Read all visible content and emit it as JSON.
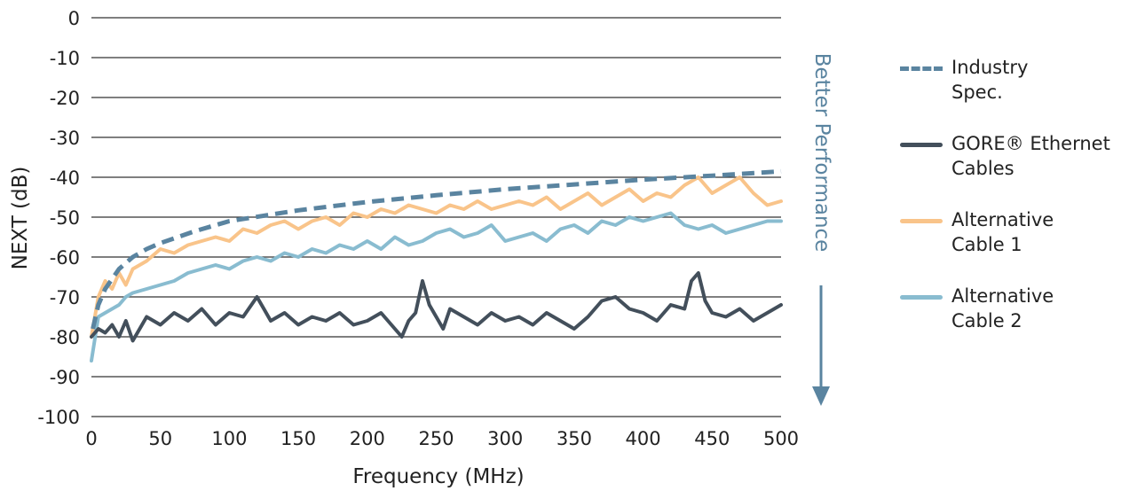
{
  "colors": {
    "industry": "#5a84a0",
    "gore": "#434f5b",
    "alt1": "#f9c48a",
    "alt2": "#89bcd0",
    "arrow": "#5a84a0"
  },
  "arrow_label": "Better Performance",
  "legend": [
    {
      "line1": "Industry",
      "line2": "Spec.",
      "series": "industry",
      "dashed": true
    },
    {
      "line1": "GORE® Ethernet",
      "line2": "Cables",
      "series": "gore",
      "dashed": false
    },
    {
      "line1": "Alternative",
      "line2": "Cable 1",
      "series": "alt1",
      "dashed": false
    },
    {
      "line1": "Alternative",
      "line2": "Cable 2",
      "series": "alt2",
      "dashed": false
    }
  ],
  "chart_data": {
    "type": "line",
    "xlabel": "Frequency (MHz)",
    "ylabel": "NEXT (dB)",
    "xlim": [
      0,
      500
    ],
    "ylim": [
      -100,
      0
    ],
    "x_ticks": [
      0,
      50,
      100,
      150,
      200,
      250,
      300,
      350,
      400,
      450,
      500
    ],
    "y_ticks": [
      0,
      -10,
      -20,
      -30,
      -40,
      -50,
      -60,
      -70,
      -80,
      -90,
      -100
    ],
    "grid": "horizontal",
    "legend_position": "right",
    "series": [
      {
        "key": "industry",
        "name": "Industry Spec.",
        "style": "dashed",
        "x": [
          1,
          5,
          10,
          15,
          20,
          30,
          40,
          50,
          75,
          100,
          150,
          200,
          250,
          300,
          350,
          400,
          450,
          500
        ],
        "y": [
          -78,
          -72,
          -68,
          -65.5,
          -63,
          -60,
          -58,
          -56.5,
          -53.5,
          -51,
          -48.3,
          -46.2,
          -44.5,
          -43,
          -41.8,
          -40.6,
          -39.6,
          -38.5
        ]
      },
      {
        "key": "gore",
        "name": "GORE® Ethernet Cables",
        "style": "solid",
        "x": [
          0,
          5,
          10,
          15,
          20,
          25,
          30,
          40,
          50,
          60,
          70,
          80,
          90,
          100,
          110,
          120,
          125,
          130,
          140,
          150,
          160,
          170,
          180,
          190,
          200,
          210,
          220,
          225,
          230,
          235,
          240,
          245,
          250,
          255,
          260,
          270,
          280,
          290,
          300,
          310,
          320,
          330,
          340,
          350,
          360,
          370,
          380,
          390,
          400,
          410,
          420,
          430,
          435,
          440,
          445,
          450,
          460,
          470,
          480,
          490,
          500
        ],
        "y": [
          -80,
          -78,
          -79,
          -77,
          -80,
          -76,
          -81,
          -75,
          -77,
          -74,
          -76,
          -73,
          -77,
          -74,
          -75,
          -70,
          -73,
          -76,
          -74,
          -77,
          -75,
          -76,
          -74,
          -77,
          -76,
          -74,
          -78,
          -80,
          -76,
          -74,
          -66,
          -72,
          -75,
          -78,
          -73,
          -75,
          -77,
          -74,
          -76,
          -75,
          -77,
          -74,
          -76,
          -78,
          -75,
          -71,
          -70,
          -73,
          -74,
          -76,
          -72,
          -73,
          -66,
          -64,
          -71,
          -74,
          -75,
          -73,
          -76,
          -74,
          -72
        ]
      },
      {
        "key": "alt1",
        "name": "Alternative Cable 1",
        "style": "solid",
        "x": [
          0,
          5,
          10,
          15,
          20,
          25,
          30,
          40,
          50,
          60,
          70,
          80,
          90,
          100,
          110,
          120,
          130,
          140,
          150,
          160,
          170,
          180,
          190,
          200,
          210,
          220,
          230,
          240,
          250,
          260,
          270,
          280,
          290,
          300,
          310,
          320,
          330,
          340,
          350,
          360,
          370,
          380,
          390,
          400,
          410,
          420,
          430,
          440,
          450,
          460,
          470,
          480,
          490,
          500
        ],
        "y": [
          -80,
          -70,
          -66,
          -68,
          -64,
          -67,
          -63,
          -61,
          -58,
          -59,
          -57,
          -56,
          -55,
          -56,
          -53,
          -54,
          -52,
          -51,
          -53,
          -51,
          -50,
          -52,
          -49,
          -50,
          -48,
          -49,
          -47,
          -48,
          -49,
          -47,
          -48,
          -46,
          -48,
          -47,
          -46,
          -47,
          -45,
          -48,
          -46,
          -44,
          -47,
          -45,
          -43,
          -46,
          -44,
          -45,
          -42,
          -40,
          -44,
          -42,
          -40,
          -44,
          -47,
          -46
        ]
      },
      {
        "key": "alt2",
        "name": "Alternative Cable 2",
        "style": "solid",
        "x": [
          0,
          5,
          10,
          15,
          20,
          25,
          30,
          40,
          50,
          60,
          70,
          80,
          90,
          100,
          110,
          120,
          130,
          140,
          150,
          160,
          170,
          180,
          190,
          200,
          210,
          220,
          230,
          240,
          250,
          260,
          270,
          280,
          290,
          300,
          310,
          320,
          330,
          340,
          350,
          360,
          370,
          380,
          390,
          400,
          410,
          420,
          430,
          440,
          450,
          460,
          470,
          480,
          490,
          500
        ],
        "y": [
          -86,
          -75,
          -74,
          -73,
          -72,
          -70,
          -69,
          -68,
          -67,
          -66,
          -64,
          -63,
          -62,
          -63,
          -61,
          -60,
          -61,
          -59,
          -60,
          -58,
          -59,
          -57,
          -58,
          -56,
          -58,
          -55,
          -57,
          -56,
          -54,
          -53,
          -55,
          -54,
          -52,
          -56,
          -55,
          -54,
          -56,
          -53,
          -52,
          -54,
          -51,
          -52,
          -50,
          -51,
          -50,
          -49,
          -52,
          -53,
          -52,
          -54,
          -53,
          -52,
          -51,
          -51
        ]
      }
    ]
  }
}
